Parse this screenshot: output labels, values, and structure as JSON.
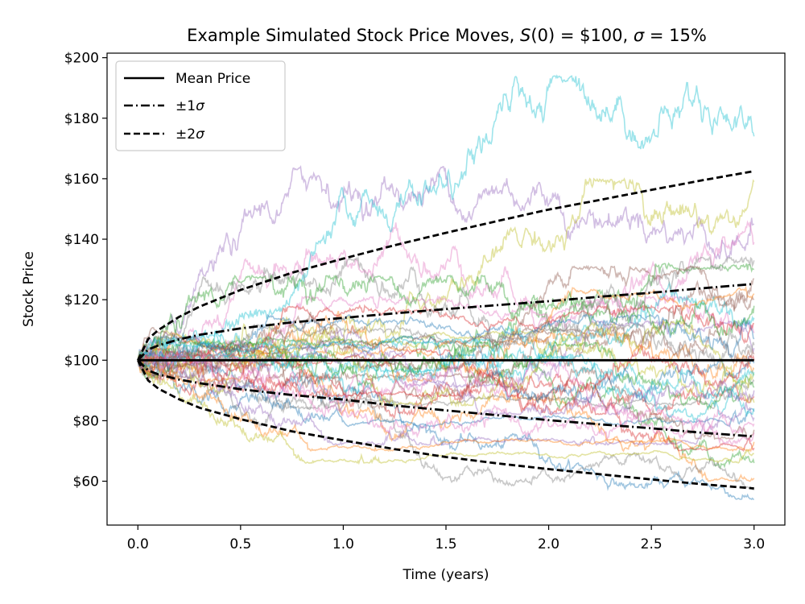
{
  "chart_data": {
    "type": "line",
    "title": "Example Simulated Stock Price Moves, S(0) = $100, σ = 15%",
    "title_parts": {
      "prefix": "Example Simulated Stock Price Moves, ",
      "s0_symbol": "S",
      "s0_text": "(0) = $100, ",
      "sigma_symbol": "σ",
      "sigma_text": " = 15%"
    },
    "xlabel": "Time (years)",
    "ylabel": "Stock Price",
    "xlim": [
      -0.15,
      3.15
    ],
    "ylim": [
      45.5,
      201.5
    ],
    "xticks": [
      0.0,
      0.5,
      1.0,
      1.5,
      2.0,
      2.5,
      3.0
    ],
    "xtick_labels": [
      "0.0",
      "0.5",
      "1.0",
      "1.5",
      "2.0",
      "2.5",
      "3.0"
    ],
    "yticks": [
      60,
      80,
      100,
      120,
      140,
      160,
      180,
      200
    ],
    "ytick_labels": [
      "$60",
      "$80",
      "$100",
      "$120",
      "$140",
      "$160",
      "$180",
      "$200"
    ],
    "grid": false,
    "legend_position": "top-left",
    "legend": [
      {
        "label_prefix": "Mean Price",
        "label_sigma": "",
        "style": "solid",
        "color": "#000000"
      },
      {
        "label_prefix": "±1",
        "label_sigma": "σ",
        "style": "dashdot",
        "color": "#000000"
      },
      {
        "label_prefix": "±2",
        "label_sigma": "σ",
        "style": "dashed",
        "color": "#000000"
      }
    ],
    "reference_curves": {
      "x": [
        0.0,
        0.05,
        0.1,
        0.2,
        0.3,
        0.5,
        0.75,
        1.0,
        1.25,
        1.5,
        1.75,
        2.0,
        2.25,
        2.5,
        2.75,
        3.0
      ],
      "mean": [
        100,
        100,
        100,
        100,
        100,
        100,
        100,
        100,
        100,
        100,
        100,
        100,
        100,
        100,
        100,
        100
      ],
      "plus_1sigma": [
        100,
        103.5,
        104.9,
        106.9,
        108.4,
        110.5,
        112.5,
        114.0,
        115.5,
        116.9,
        118.2,
        119.5,
        121.0,
        122.3,
        123.8,
        125.2
      ],
      "minus_1sigma": [
        100,
        96.6,
        95.3,
        93.6,
        92.4,
        90.4,
        88.5,
        87.0,
        85.0,
        83.4,
        81.8,
        80.2,
        78.8,
        77.5,
        76.0,
        74.8
      ],
      "plus_2sigma": [
        100,
        107.0,
        110.0,
        114.3,
        117.7,
        123.2,
        128.9,
        133.6,
        138.0,
        142.1,
        146.0,
        149.8,
        153.0,
        156.3,
        159.5,
        162.5
      ],
      "minus_2sigma": [
        100,
        93.3,
        90.6,
        87.1,
        84.3,
        80.5,
        76.5,
        73.5,
        70.6,
        68.0,
        65.9,
        64.0,
        62.3,
        60.6,
        59.0,
        57.6
      ]
    },
    "simulated_paths": [
      {
        "color": "#1f77b4",
        "end": 54.0,
        "max": 100,
        "min": 54.0
      },
      {
        "color": "#ff7f0e",
        "end": 61.0,
        "max": 104,
        "min": 60.0
      },
      {
        "color": "#2ca02c",
        "end": 66.0,
        "max": 108,
        "min": 64.0
      },
      {
        "color": "#d62728",
        "end": 71.0,
        "max": 114,
        "min": 70.0
      },
      {
        "color": "#9467bd",
        "end": 145.0,
        "max": 164,
        "min": 96.0
      },
      {
        "color": "#8c564b",
        "end": 120.0,
        "max": 127,
        "min": 94.0
      },
      {
        "color": "#e377c2",
        "end": 139.0,
        "max": 171,
        "min": 98.0
      },
      {
        "color": "#7f7f7f",
        "end": 57.0,
        "max": 103,
        "min": 53.0
      },
      {
        "color": "#bcbd22",
        "end": 159.0,
        "max": 160,
        "min": 97.0
      },
      {
        "color": "#17becf",
        "end": 174.0,
        "max": 194,
        "min": 98.0
      },
      {
        "color": "#1f77b4",
        "end": 83.0,
        "max": 106,
        "min": 78.0
      },
      {
        "color": "#ff7f0e",
        "end": 97.0,
        "max": 109,
        "min": 88.0
      },
      {
        "color": "#2ca02c",
        "end": 130.0,
        "max": 132,
        "min": 94.0
      },
      {
        "color": "#d62728",
        "end": 88.0,
        "max": 104,
        "min": 82.0
      },
      {
        "color": "#9467bd",
        "end": 104.0,
        "max": 113,
        "min": 91.0
      },
      {
        "color": "#8c564b",
        "end": 77.0,
        "max": 102,
        "min": 74.0
      },
      {
        "color": "#e377c2",
        "end": 109.0,
        "max": 121,
        "min": 90.0
      },
      {
        "color": "#7f7f7f",
        "end": 93.0,
        "max": 108,
        "min": 84.0
      },
      {
        "color": "#bcbd22",
        "end": 86.0,
        "max": 110,
        "min": 80.0
      },
      {
        "color": "#17becf",
        "end": 114.0,
        "max": 134,
        "min": 96.0
      },
      {
        "color": "#1f77b4",
        "end": 99.0,
        "max": 108,
        "min": 86.0
      },
      {
        "color": "#ff7f0e",
        "end": 122.0,
        "max": 124,
        "min": 93.0
      },
      {
        "color": "#2ca02c",
        "end": 91.0,
        "max": 106,
        "min": 79.0
      },
      {
        "color": "#d62728",
        "end": 112.0,
        "max": 118,
        "min": 95.0
      },
      {
        "color": "#9467bd",
        "end": 81.0,
        "max": 101,
        "min": 72.0
      },
      {
        "color": "#8c564b",
        "end": 102.0,
        "max": 111,
        "min": 90.0
      },
      {
        "color": "#e377c2",
        "end": 76.0,
        "max": 100,
        "min": 68.0
      },
      {
        "color": "#7f7f7f",
        "end": 133.0,
        "max": 134,
        "min": 95.0
      },
      {
        "color": "#bcbd22",
        "end": 95.0,
        "max": 113,
        "min": 85.0
      },
      {
        "color": "#17becf",
        "end": 84.0,
        "max": 102,
        "min": 77.0
      },
      {
        "color": "#1f77b4",
        "end": 107.0,
        "max": 115,
        "min": 92.0
      },
      {
        "color": "#ff7f0e",
        "end": 73.0,
        "max": 101,
        "min": 70.0
      },
      {
        "color": "#2ca02c",
        "end": 118.0,
        "max": 128,
        "min": 96.0
      },
      {
        "color": "#d62728",
        "end": 100.0,
        "max": 109,
        "min": 88.0
      },
      {
        "color": "#9467bd",
        "end": 90.0,
        "max": 103,
        "min": 82.0
      },
      {
        "color": "#8c564b",
        "end": 127.0,
        "max": 131,
        "min": 97.0
      },
      {
        "color": "#e377c2",
        "end": 79.0,
        "max": 102,
        "min": 74.0
      },
      {
        "color": "#7f7f7f",
        "end": 105.0,
        "max": 112,
        "min": 91.0
      },
      {
        "color": "#bcbd22",
        "end": 69.0,
        "max": 100,
        "min": 66.0
      },
      {
        "color": "#17becf",
        "end": 96.0,
        "max": 107,
        "min": 86.0
      }
    ]
  }
}
